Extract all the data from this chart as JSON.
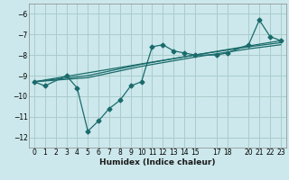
{
  "title": "",
  "xlabel": "Humidex (Indice chaleur)",
  "ylabel": "",
  "bg_color": "#cce8ec",
  "grid_color": "#aacccc",
  "line_color": "#1a6b6b",
  "xlim": [
    -0.5,
    23.5
  ],
  "ylim": [
    -12.5,
    -5.5
  ],
  "yticks": [
    -12,
    -11,
    -10,
    -9,
    -8,
    -7,
    -6
  ],
  "xticks": [
    0,
    1,
    2,
    3,
    4,
    5,
    6,
    7,
    8,
    9,
    10,
    11,
    12,
    13,
    14,
    15,
    17,
    18,
    20,
    21,
    22,
    23
  ],
  "line1_x": [
    0,
    1,
    3,
    4,
    5,
    6,
    7,
    8,
    9,
    10,
    11,
    12,
    13,
    14,
    15,
    17,
    18,
    20,
    21,
    22,
    23
  ],
  "line1_y": [
    -9.3,
    -9.5,
    -9.0,
    -9.6,
    -11.7,
    -11.2,
    -10.6,
    -10.2,
    -9.5,
    -9.3,
    -7.6,
    -7.5,
    -7.8,
    -7.9,
    -8.0,
    -8.0,
    -7.9,
    -7.5,
    -6.3,
    -7.1,
    -7.3
  ],
  "line2_x": [
    0,
    5,
    10,
    15,
    20,
    23
  ],
  "line2_y": [
    -9.3,
    -9.1,
    -8.55,
    -8.1,
    -7.7,
    -7.5
  ],
  "line3_x": [
    0,
    5,
    10,
    15,
    20,
    23
  ],
  "line3_y": [
    -9.3,
    -9.0,
    -8.45,
    -8.0,
    -7.6,
    -7.4
  ],
  "line4_x": [
    0,
    23
  ],
  "line4_y": [
    -9.3,
    -7.3
  ]
}
